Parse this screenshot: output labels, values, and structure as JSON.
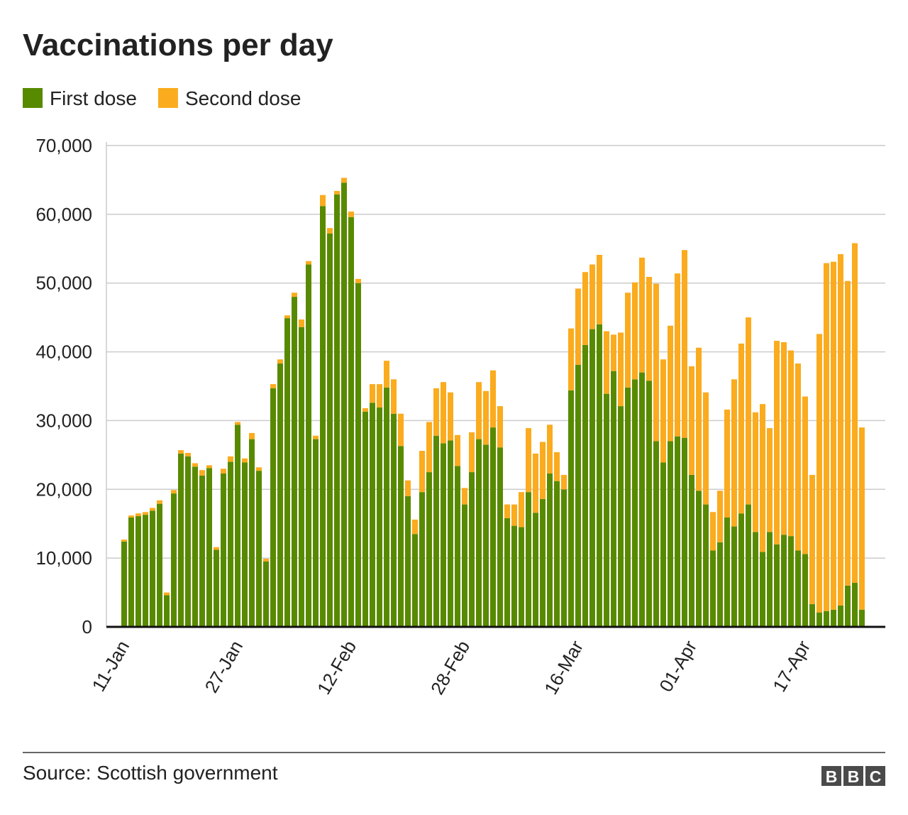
{
  "chart_data": {
    "type": "bar",
    "stacked": true,
    "title": "Vaccinations per day",
    "source": "Source: Scottish government",
    "logo": [
      "B",
      "B",
      "C"
    ],
    "categories": [
      "11-Jan",
      null,
      null,
      null,
      null,
      null,
      null,
      null,
      null,
      null,
      null,
      null,
      null,
      null,
      null,
      null,
      "27-Jan",
      null,
      null,
      null,
      null,
      null,
      null,
      null,
      null,
      null,
      null,
      null,
      null,
      null,
      null,
      null,
      "12-Feb",
      null,
      null,
      null,
      null,
      null,
      null,
      null,
      null,
      null,
      null,
      null,
      null,
      null,
      null,
      null,
      "28-Feb",
      null,
      null,
      null,
      null,
      null,
      null,
      null,
      null,
      null,
      null,
      null,
      null,
      null,
      null,
      null,
      "16-Mar",
      null,
      null,
      null,
      null,
      null,
      null,
      null,
      null,
      null,
      null,
      null,
      null,
      null,
      null,
      null,
      "01-Apr",
      null,
      null,
      null,
      null,
      null,
      null,
      null,
      null,
      null,
      null,
      null,
      null,
      null,
      null,
      null,
      "17-Apr",
      null,
      null,
      null,
      null,
      null,
      null,
      null,
      null
    ],
    "series": [
      {
        "name": "First dose",
        "color": "#588a00",
        "values": [
          12400,
          15900,
          16100,
          16300,
          16900,
          17900,
          4600,
          19400,
          25200,
          24800,
          23300,
          22000,
          23100,
          11200,
          22300,
          24000,
          29400,
          23900,
          27300,
          22700,
          9500,
          34700,
          38300,
          44900,
          48000,
          43600,
          52700,
          27300,
          61200,
          57200,
          62900,
          64600,
          59600,
          50000,
          31300,
          32600,
          31900,
          34800,
          31000,
          26300,
          19000,
          13500,
          19600,
          22500,
          27800,
          26700,
          27100,
          23400,
          17800,
          22500,
          27300,
          26500,
          29000,
          26100,
          15800,
          14700,
          14500,
          19600,
          16600,
          18600,
          22300,
          21200,
          20000,
          34400,
          38100,
          41000,
          43300,
          44000,
          33900,
          37200,
          32100,
          34800,
          36000,
          37000,
          35800,
          27000,
          23900,
          27000,
          27700,
          27500,
          22100,
          19800,
          17800,
          11100,
          12300,
          15900,
          14600,
          16500,
          17800,
          13800,
          10900,
          13800,
          12000,
          13400,
          13200,
          11100,
          10600,
          3300,
          2100,
          2300,
          2500,
          3100,
          6000,
          6400,
          2500
        ]
      },
      {
        "name": "Second dose",
        "color": "#fbab1e",
        "values": [
          300,
          300,
          400,
          400,
          400,
          500,
          400,
          500,
          500,
          500,
          500,
          800,
          400,
          400,
          700,
          800,
          400,
          600,
          900,
          500,
          400,
          600,
          600,
          400,
          600,
          1100,
          500,
          500,
          1600,
          800,
          500,
          700,
          800,
          600,
          500,
          2700,
          3400,
          3900,
          5000,
          4700,
          2300,
          2100,
          6000,
          7300,
          6900,
          8900,
          7000,
          4500,
          2400,
          5800,
          8300,
          7800,
          8300,
          6000,
          2000,
          3100,
          5100,
          9300,
          8600,
          8300,
          7100,
          4200,
          2100,
          9000,
          11100,
          10600,
          9400,
          10100,
          9100,
          5300,
          10700,
          13800,
          14100,
          16700,
          15100,
          22900,
          15000,
          16800,
          23700,
          27300,
          15800,
          20800,
          16300,
          5600,
          7500,
          15700,
          21400,
          24700,
          27200,
          17400,
          21500,
          15100,
          29600,
          28000,
          27000,
          27200,
          22900,
          18800,
          40500,
          50600,
          50600,
          51100,
          44300,
          49400,
          26500
        ]
      }
    ],
    "ylim": [
      0,
      70000
    ],
    "yticks": [
      0,
      {
        "value": 10000,
        "label": "10,000"
      },
      {
        "value": 20000,
        "label": "20,000"
      },
      {
        "value": 30000,
        "label": "30,000"
      },
      {
        "value": 40000,
        "label": "40,000"
      },
      {
        "value": 50000,
        "label": "50,000"
      },
      {
        "value": 60000,
        "label": "60,000"
      },
      {
        "value": 70000,
        "label": "70,000"
      }
    ],
    "grid": true
  }
}
